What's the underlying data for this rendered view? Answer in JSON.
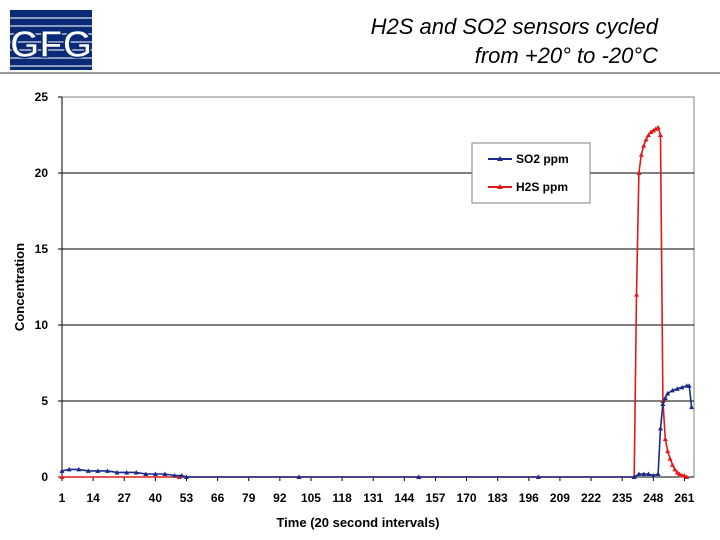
{
  "header": {
    "title_line1": "H2S and SO2 sensors cycled",
    "title_line2": "from +20° to -20°C"
  },
  "logo": {
    "text": "GFG",
    "color": "#0a2a78"
  },
  "chart_data": {
    "type": "line",
    "title": "",
    "xlabel": "Time (20 second intervals)",
    "ylabel": "Concentration",
    "ylim": [
      0,
      25
    ],
    "yticks": [
      0,
      5,
      10,
      15,
      20,
      25
    ],
    "xlim": [
      1,
      265
    ],
    "xticks": [
      1,
      14,
      27,
      40,
      53,
      66,
      79,
      92,
      105,
      118,
      131,
      144,
      157,
      170,
      183,
      196,
      209,
      222,
      235,
      248,
      261
    ],
    "grid": "horizontal",
    "legend_position": "top-right",
    "series": [
      {
        "name": "SO2 ppm",
        "color": "#1a2a88",
        "points": [
          [
            1,
            0.4
          ],
          [
            4,
            0.5
          ],
          [
            8,
            0.5
          ],
          [
            12,
            0.4
          ],
          [
            16,
            0.4
          ],
          [
            20,
            0.4
          ],
          [
            24,
            0.3
          ],
          [
            28,
            0.3
          ],
          [
            32,
            0.3
          ],
          [
            36,
            0.2
          ],
          [
            40,
            0.2
          ],
          [
            44,
            0.2
          ],
          [
            48,
            0.1
          ],
          [
            51,
            0.1
          ],
          [
            53,
            0
          ],
          [
            100,
            0
          ],
          [
            150,
            0
          ],
          [
            200,
            0
          ],
          [
            240,
            0
          ],
          [
            242,
            0.2
          ],
          [
            244,
            0.2
          ],
          [
            246,
            0.2
          ],
          [
            248,
            0.1
          ],
          [
            250,
            0.2
          ],
          [
            251,
            3.2
          ],
          [
            252,
            4.8
          ],
          [
            253,
            5.2
          ],
          [
            254,
            5.5
          ],
          [
            256,
            5.7
          ],
          [
            258,
            5.8
          ],
          [
            260,
            5.9
          ],
          [
            262,
            6.0
          ],
          [
            263,
            6.0
          ],
          [
            264,
            4.6
          ]
        ]
      },
      {
        "name": "H2S ppm",
        "color": "#e01a1a",
        "points": [
          [
            1,
            0
          ],
          [
            50,
            0
          ],
          [
            100,
            0
          ],
          [
            150,
            0
          ],
          [
            200,
            0
          ],
          [
            240,
            0
          ],
          [
            241,
            12.0
          ],
          [
            242,
            20.0
          ],
          [
            243,
            21.2
          ],
          [
            244,
            21.8
          ],
          [
            245,
            22.2
          ],
          [
            246,
            22.5
          ],
          [
            247,
            22.7
          ],
          [
            248,
            22.8
          ],
          [
            249,
            22.9
          ],
          [
            250,
            23.0
          ],
          [
            251,
            22.5
          ],
          [
            252,
            5.0
          ],
          [
            253,
            2.5
          ],
          [
            254,
            1.7
          ],
          [
            255,
            1.2
          ],
          [
            256,
            0.8
          ],
          [
            257,
            0.5
          ],
          [
            258,
            0.3
          ],
          [
            259,
            0.2
          ],
          [
            260,
            0.1
          ],
          [
            261,
            0.1
          ],
          [
            262,
            0
          ]
        ]
      }
    ]
  }
}
